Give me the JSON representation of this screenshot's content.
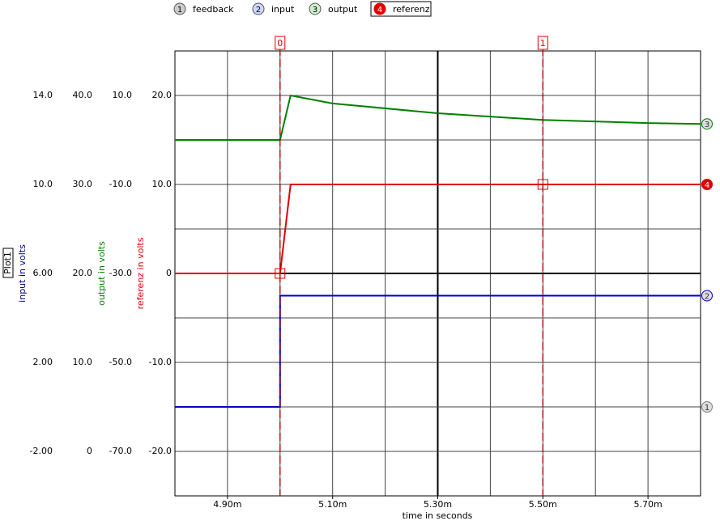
{
  "chart_data": {
    "type": "line",
    "legend_title": "Plot1",
    "xlabel": "time in seconds",
    "xlim": [
      0.0048,
      0.0058
    ],
    "xticks": [
      {
        "value": 0.0049,
        "label": "4.90m"
      },
      {
        "value": 0.0051,
        "label": "5.10m"
      },
      {
        "value": 0.0053,
        "label": "5.30m"
      },
      {
        "value": 0.0055,
        "label": "5.50m"
      },
      {
        "value": 0.0057,
        "label": "5.70m"
      }
    ],
    "xgrid": [
      0.0048,
      0.0049,
      0.005,
      0.0051,
      0.0052,
      0.0053,
      0.0054,
      0.0055,
      0.0056,
      0.0057,
      0.0058
    ],
    "ygrid": [
      25,
      20,
      15,
      10,
      5,
      0,
      -5,
      -10,
      -15,
      -20,
      -25
    ],
    "grid": true,
    "axes": [
      {
        "label": "input in volts",
        "color": "#00008b",
        "ylim": [
          -4,
          16
        ],
        "yticks": [
          {
            "value": 14,
            "label": "14.0"
          },
          {
            "value": 10,
            "label": "10.0"
          },
          {
            "value": 6,
            "label": "6.00"
          },
          {
            "value": 2,
            "label": "2.00"
          },
          {
            "value": -2,
            "label": "-2.00"
          }
        ]
      },
      {
        "ylim": [
          -5,
          45
        ],
        "yticks": [
          {
            "value": 40,
            "label": "40.0"
          },
          {
            "value": 30,
            "label": "30.0"
          },
          {
            "value": 20,
            "label": "20.0"
          },
          {
            "value": 10,
            "label": "10.0"
          },
          0
        ]
      },
      {
        "label": "output in volts",
        "color": "#008000",
        "ylim": [
          -80,
          20
        ],
        "yticks": [
          {
            "value": 10,
            "label": "10.0"
          },
          {
            "value": -10,
            "label": "-10.0"
          },
          {
            "value": -30,
            "label": "-30.0"
          },
          {
            "value": -50,
            "label": "-50.0"
          },
          {
            "value": -70,
            "label": "-70.0"
          }
        ]
      },
      {
        "label": "referenz in volts",
        "color": "#e00000",
        "ylim": [
          -25,
          25
        ],
        "yticks": [
          {
            "value": 20,
            "label": "20.0"
          },
          {
            "value": 10,
            "label": "10.0"
          },
          0,
          {
            "value": -10,
            "label": "-10.0"
          },
          {
            "value": -20,
            "label": "-20.0"
          }
        ]
      }
    ],
    "series": [
      {
        "name": "feedback",
        "marker": "1",
        "color": "#808080",
        "axis": 1,
        "x": [
          0.0058
        ],
        "values": [
          5
        ]
      },
      {
        "name": "input",
        "marker": "2",
        "color": "#0000cc",
        "axis": 0,
        "x": [
          0.0048,
          0.005,
          0.005,
          0.0058
        ],
        "values": [
          0,
          0,
          5,
          5
        ]
      },
      {
        "name": "output",
        "marker": "3",
        "color": "#008000",
        "axis": 2,
        "x": [
          0.0048,
          0.005,
          0.00502,
          0.0051,
          0.0053,
          0.0055,
          0.0057,
          0.0058
        ],
        "values": [
          0,
          0,
          10,
          8.2,
          6,
          4.5,
          3.8,
          3.6
        ]
      },
      {
        "name": "referenz",
        "marker": "4",
        "color": "#e00000",
        "axis": 3,
        "x": [
          0.0048,
          0.005,
          0.00502,
          0.0058
        ],
        "values": [
          0,
          0,
          10,
          10
        ]
      }
    ],
    "cursors": [
      {
        "label": "0",
        "x": 0.005
      },
      {
        "label": "1",
        "x": 0.0055
      }
    ]
  }
}
